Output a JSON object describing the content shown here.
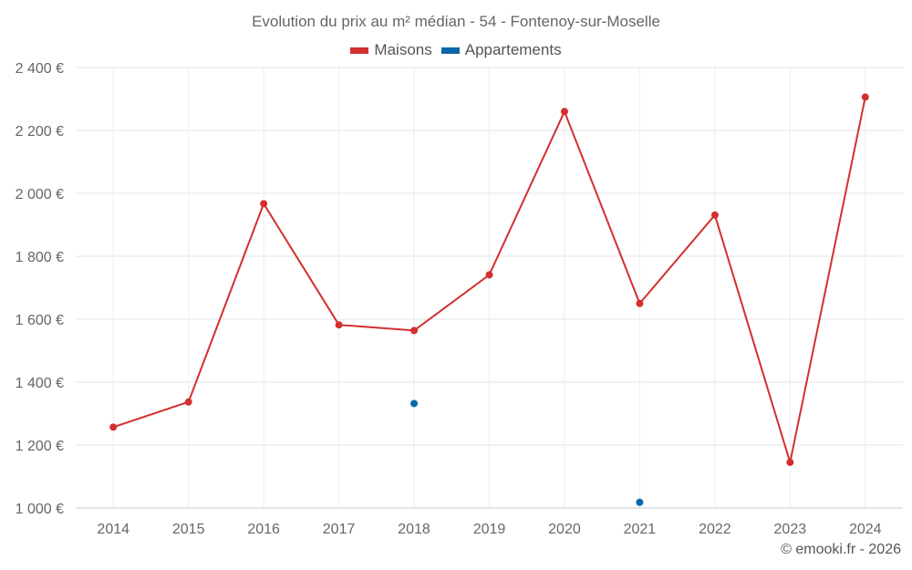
{
  "chart_data": {
    "type": "line",
    "title": "Evolution du prix au m² médian - 54 - Fontenoy-sur-Moselle",
    "categories": [
      "2014",
      "2015",
      "2016",
      "2017",
      "2018",
      "2019",
      "2020",
      "2021",
      "2022",
      "2023",
      "2024"
    ],
    "ylim": [
      1000,
      2400
    ],
    "yticks": [
      1000,
      1200,
      1400,
      1600,
      1800,
      2000,
      2200,
      2400
    ],
    "ytick_labels": [
      "1 000 €",
      "1 200 €",
      "1 400 €",
      "1 600 €",
      "1 800 €",
      "2 000 €",
      "2 200 €",
      "2 400 €"
    ],
    "grid": true,
    "legend_position": "top-center",
    "series": [
      {
        "name": "Maisons",
        "color": "#d32f2f",
        "line": true,
        "values": [
          1257,
          1337,
          1967,
          1582,
          1564,
          1741,
          2260,
          1650,
          1931,
          1145,
          2306
        ]
      },
      {
        "name": "Appartements",
        "color": "#0868a8",
        "line": false,
        "values": [
          null,
          null,
          null,
          null,
          1332,
          null,
          null,
          1018,
          null,
          null,
          null
        ]
      }
    ]
  },
  "credit": "© emooki.fr - 2026"
}
